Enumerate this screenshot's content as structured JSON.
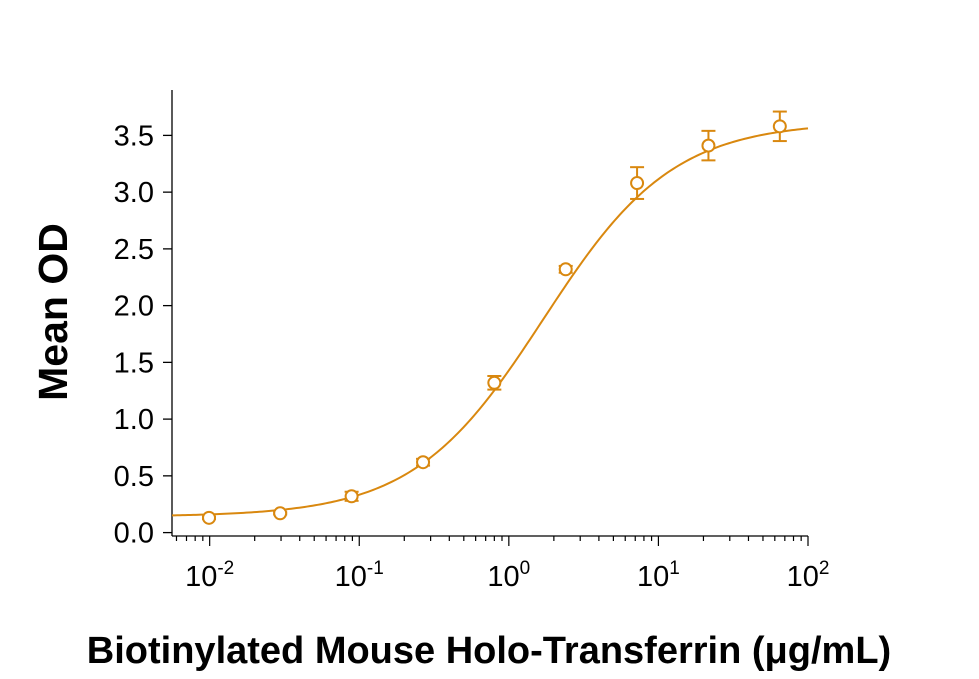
{
  "chart_data": {
    "type": "scatter",
    "title": "",
    "xlabel": "Biotinylated Mouse Holo-Transferrin (μg/mL)",
    "ylabel": "Mean OD",
    "xscale": "log",
    "xlim": [
      0.0056,
      100
    ],
    "ylim": [
      -0.03,
      3.9
    ],
    "grid": false,
    "legend": "none",
    "color": "#D9880F",
    "x_tick_labels": [
      {
        "base": "10",
        "exp": "-2",
        "value": 0.01
      },
      {
        "base": "10",
        "exp": "-1",
        "value": 0.1
      },
      {
        "base": "10",
        "exp": "0",
        "value": 1
      },
      {
        "base": "10",
        "exp": "1",
        "value": 10
      },
      {
        "base": "10",
        "exp": "2",
        "value": 100
      }
    ],
    "y_tick_labels": [
      "0.0",
      "0.5",
      "1.0",
      "1.5",
      "2.0",
      "2.5",
      "3.0",
      "3.5"
    ],
    "y_tick_values": [
      0,
      0.5,
      1.0,
      1.5,
      2.0,
      2.5,
      3.0,
      3.5
    ],
    "series": [
      {
        "x": [
          0.0099,
          0.0296,
          0.0889,
          0.267,
          0.8,
          2.4,
          7.2,
          21.6,
          64.8
        ],
        "y": [
          0.13,
          0.17,
          0.32,
          0.62,
          1.32,
          2.32,
          3.08,
          3.41,
          3.58
        ],
        "err": [
          0.01,
          0.01,
          0.04,
          0.03,
          0.06,
          0.03,
          0.14,
          0.13,
          0.13
        ]
      }
    ],
    "fit_curve": {
      "model": "4PL",
      "bottom": 0.14,
      "top": 3.62,
      "ec50": 1.7,
      "hill": 1.0
    }
  }
}
